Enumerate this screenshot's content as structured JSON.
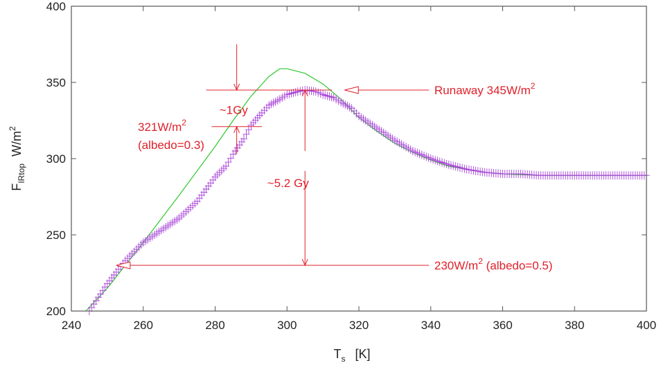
{
  "chart_data": {
    "type": "line",
    "title": "",
    "xlabel": {
      "main": "T",
      "sub": "s",
      "unit": "[K]"
    },
    "ylabel": {
      "main": "F",
      "sub": "IRtop",
      "unit": "W/m",
      "sup": "2"
    },
    "xlim": [
      240,
      400
    ],
    "ylim": [
      200,
      400
    ],
    "x_ticks": [
      240,
      260,
      280,
      300,
      320,
      340,
      360,
      380,
      400
    ],
    "y_ticks": [
      200,
      250,
      300,
      350,
      400
    ],
    "grid": false,
    "legend": "none",
    "series": [
      {
        "style": "line",
        "color": "#2ec82e",
        "x": [
          244,
          250,
          260,
          270,
          280,
          285,
          290,
          295,
          298,
          300,
          305,
          310,
          315,
          320,
          325,
          330,
          335,
          340,
          345,
          350,
          355,
          360,
          370,
          380,
          390,
          400
        ],
        "y": [
          200,
          215,
          245,
          276,
          308,
          325,
          341,
          354,
          359,
          359,
          356,
          349,
          339,
          327,
          318,
          310,
          304,
          299,
          295,
          293,
          291,
          290,
          289,
          289,
          289,
          289
        ]
      },
      {
        "style": "markers",
        "marker": "plus",
        "color": "#a845d8",
        "x": [
          245,
          250,
          255,
          260,
          265,
          270,
          275,
          280,
          283,
          285,
          288,
          290,
          293,
          295,
          298,
          300,
          303,
          305,
          308,
          310,
          313,
          315,
          318,
          320,
          325,
          330,
          335,
          340,
          345,
          350,
          355,
          360,
          365,
          370,
          375,
          380,
          385,
          390,
          395,
          400
        ],
        "y": [
          200,
          218,
          233,
          245,
          253,
          261,
          272,
          288,
          295,
          303,
          313,
          322,
          330,
          335,
          339,
          342,
          344,
          345,
          344,
          342,
          340,
          337,
          333,
          328,
          320,
          312,
          305,
          300,
          296,
          293,
          291,
          290,
          290,
          289,
          289,
          289,
          289,
          289,
          289,
          289
        ]
      }
    ],
    "annotations": [
      {
        "text": "Runaway 345W/m",
        "sup": "2",
        "x": 341,
        "y": 345
      },
      {
        "text": "321W/m",
        "sup": "2",
        "x": 258.5,
        "y": 321
      },
      {
        "text": "(albedo=0.3)",
        "x": 258.5,
        "y": 309
      },
      {
        "text": "~1Gy",
        "x": 281.2,
        "y": 332
      },
      {
        "text": "~5.2 Gy",
        "x": 294.5,
        "y": 284
      },
      {
        "text": "230W/m",
        "sup": "2",
        "suffix": " (albedo=0.5)",
        "x": 341,
        "y": 230
      }
    ],
    "reference_lines": {
      "runaway_level": 345,
      "albedo_03_level": 321,
      "albedo_05_level": 230
    }
  }
}
